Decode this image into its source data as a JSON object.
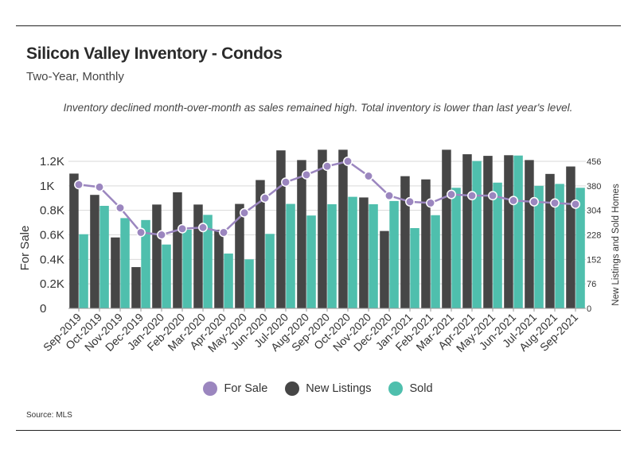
{
  "header": {
    "title": "Silicon Valley Inventory - Condos",
    "subtitle": "Two-Year, Monthly",
    "note": "Inventory declined month-over-month as sales remained high. Total inventory is lower than last year's level."
  },
  "footer": {
    "source": "Source:  MLS"
  },
  "colors": {
    "for_sale": "#9b86bf",
    "new_listings": "#464646",
    "sold": "#4fbfad",
    "grid": "#d9d9d9"
  },
  "chart_data": {
    "type": "bar",
    "categories": [
      "Sep-2019",
      "Oct-2019",
      "Nov-2019",
      "Dec-2019",
      "Jan-2020",
      "Feb-2020",
      "Mar-2020",
      "Apr-2020",
      "May-2020",
      "Jun-2020",
      "Jul-2020",
      "Aug-2020",
      "Sep-2020",
      "Oct-2020",
      "Nov-2020",
      "Dec-2020",
      "Jan-2021",
      "Feb-2021",
      "Mar-2021",
      "Apr-2021",
      "May-2021",
      "Jun-2021",
      "Jul-2021",
      "Aug-2021",
      "Sep-2021"
    ],
    "series": [
      {
        "name": "For Sale",
        "type": "line",
        "axis": "left",
        "values": [
          1010,
          990,
          820,
          620,
          600,
          650,
          660,
          620,
          780,
          900,
          1030,
          1090,
          1160,
          1200,
          1080,
          920,
          870,
          860,
          930,
          920,
          920,
          880,
          870,
          860,
          850
        ]
      },
      {
        "name": "New Listings",
        "type": "bar",
        "axis": "right",
        "values": [
          418,
          352,
          220,
          128,
          322,
          360,
          322,
          244,
          324,
          398,
          490,
          460,
          492,
          492,
          344,
          240,
          410,
          400,
          492,
          478,
          473,
          475,
          460,
          417,
          440
        ]
      },
      {
        "name": "Sold",
        "type": "bar",
        "axis": "right",
        "values": [
          230,
          318,
          280,
          274,
          198,
          244,
          290,
          170,
          152,
          231,
          324,
          288,
          323,
          346,
          323,
          333,
          249,
          289,
          374,
          457,
          390,
          474,
          380,
          386,
          374
        ]
      }
    ],
    "y_left": {
      "label": "For Sale",
      "range": [
        0,
        1200
      ],
      "ticks": [
        0,
        200,
        400,
        600,
        800,
        1000,
        1200
      ],
      "tick_labels": [
        "0",
        "0.2K",
        "0.4K",
        "0.6K",
        "0.8K",
        "1K",
        "1.2K"
      ]
    },
    "y_right": {
      "label": "New Listings and Sold Homes",
      "range": [
        0,
        456
      ],
      "ticks": [
        0,
        76,
        152,
        228,
        304,
        380,
        456
      ],
      "tick_labels": [
        "0",
        "76",
        "152",
        "228",
        "304",
        "380",
        "456"
      ]
    },
    "legend": {
      "position": "bottom",
      "entries": [
        "For Sale",
        "New Listings",
        "Sold"
      ]
    }
  }
}
